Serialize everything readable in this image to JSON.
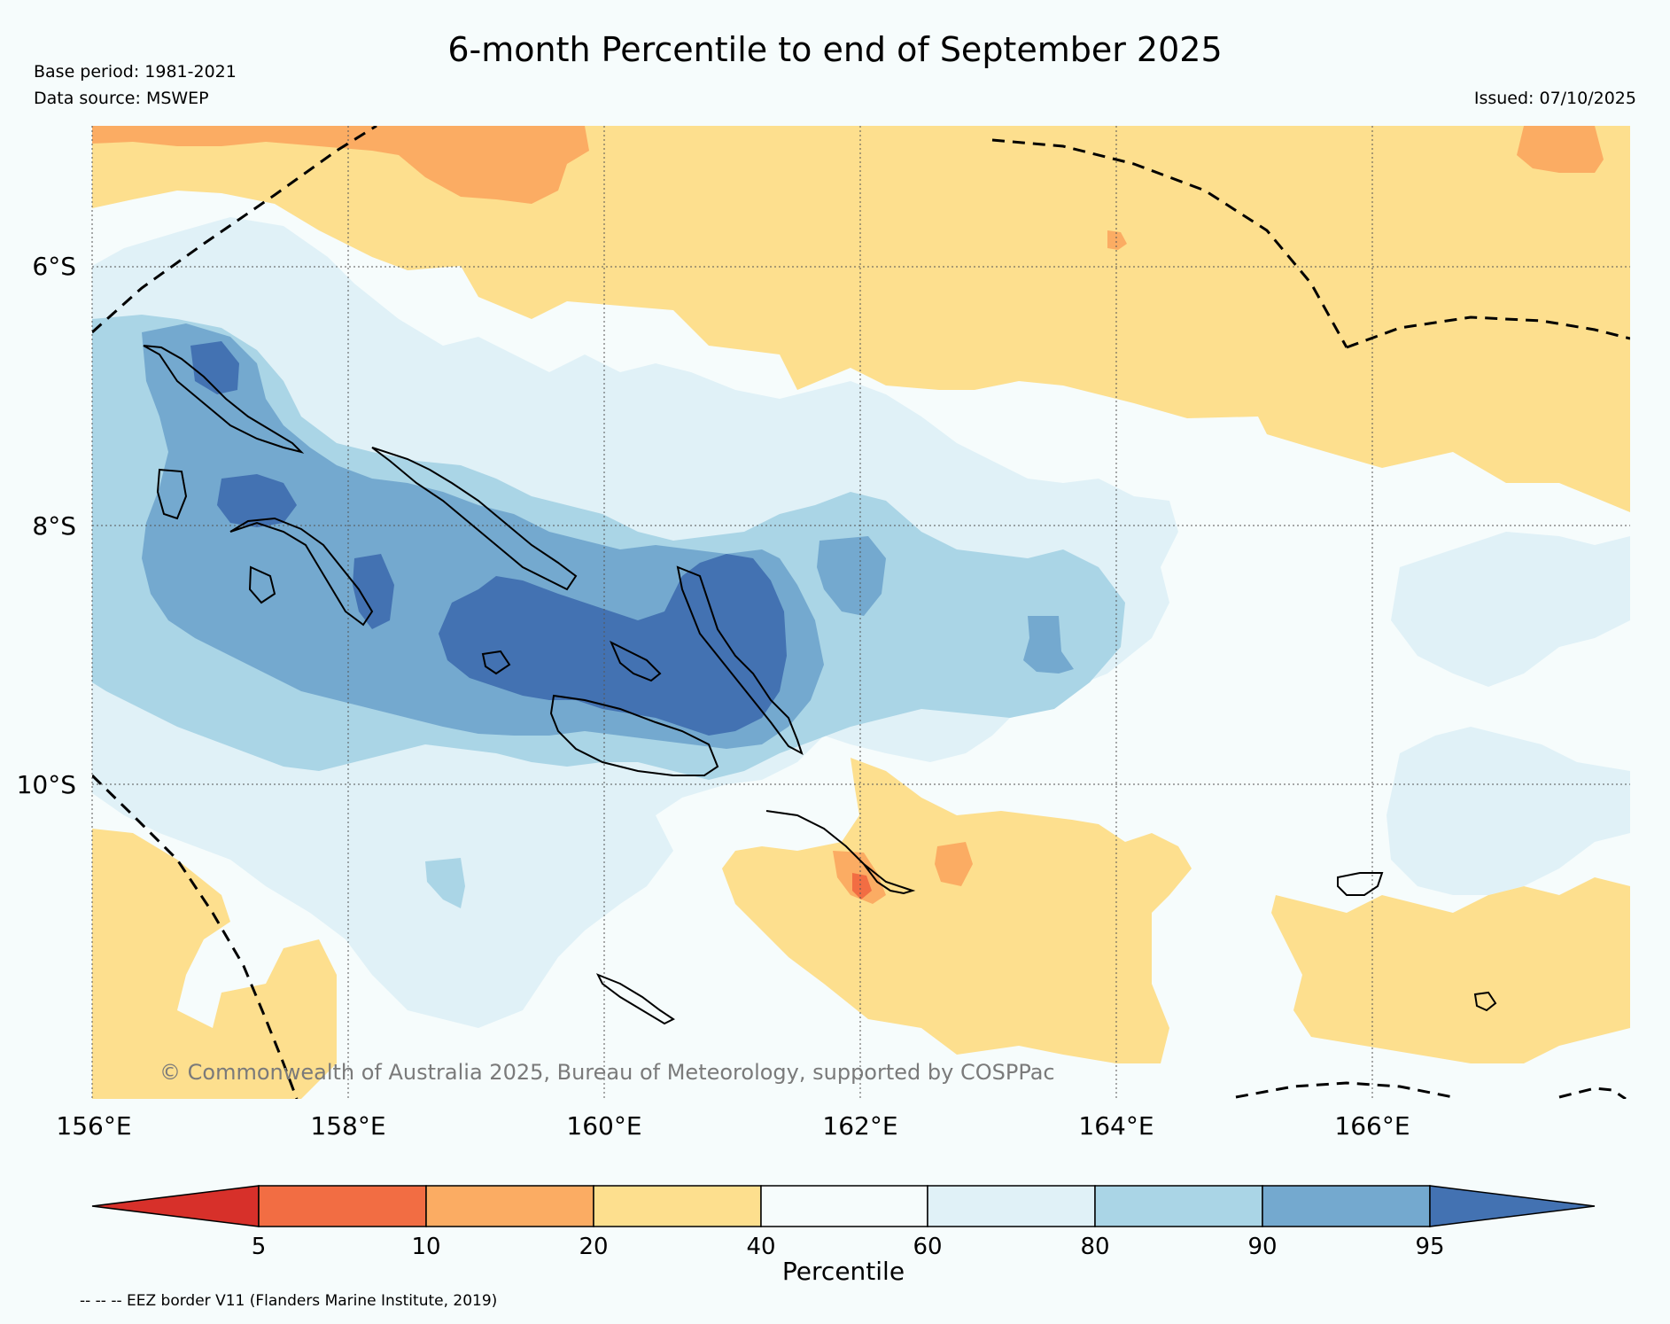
{
  "title": "6-month Percentile to end of September 2025",
  "base_period": "Base period: 1981-2021",
  "data_source": "Data source: MSWEP",
  "issued": "Issued: 07/10/2025",
  "copyright": "© Commonwealth of Australia 2025, Bureau of Meteorology, supported by COSPPac",
  "footnote": "-- -- -- EEZ border V11 (Flanders Marine Institute, 2019)",
  "map": {
    "lon_range": [
      156,
      168
    ],
    "lat_range": [
      -12.2,
      -4.8
    ],
    "lat_labels": [
      {
        "value": -6,
        "label": "6°S"
      },
      {
        "value": -8,
        "label": "8°S"
      },
      {
        "value": -10,
        "label": "10°S"
      }
    ],
    "lon_labels": [
      {
        "value": 156,
        "label": "156°E"
      },
      {
        "value": 158,
        "label": "158°E"
      },
      {
        "value": 160,
        "label": "160°E"
      },
      {
        "value": 162,
        "label": "162°E"
      },
      {
        "value": 164,
        "label": "164°E"
      },
      {
        "value": 166,
        "label": "166°E"
      }
    ]
  },
  "colorbar": {
    "title": "Percentile",
    "ticks": [
      "5",
      "10",
      "20",
      "40",
      "60",
      "80",
      "90",
      "95"
    ],
    "colors": [
      "#d7302a",
      "#f26d43",
      "#fbac63",
      "#fddf8e",
      "#f6fcfc",
      "#e0f1f7",
      "#aad5e6",
      "#74a9cf",
      "#4372b2"
    ]
  }
}
